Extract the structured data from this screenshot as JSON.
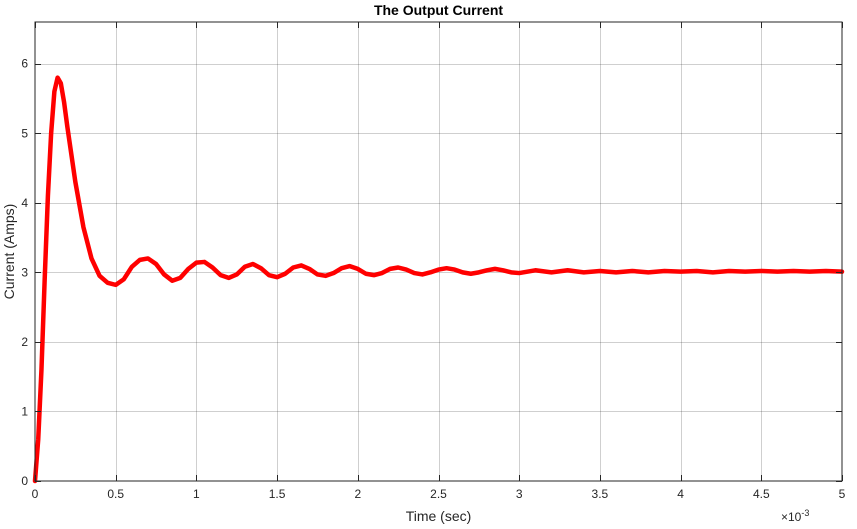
{
  "chart_data": {
    "type": "line",
    "title": "The Output Current",
    "xlabel": "Time (sec)",
    "ylabel": "Current (Amps)",
    "x_exponent_base": "×10",
    "x_exponent_power": "-3",
    "xlim": [
      0,
      5
    ],
    "ylim": [
      0,
      6.6
    ],
    "xticks": [
      0,
      0.5,
      1,
      1.5,
      2,
      2.5,
      3,
      3.5,
      4,
      4.5,
      5
    ],
    "xtick_labels": [
      "0",
      "0.5",
      "1",
      "1.5",
      "2",
      "2.5",
      "3",
      "3.5",
      "4",
      "4.5",
      "5"
    ],
    "yticks": [
      0,
      1,
      2,
      3,
      4,
      5,
      6
    ],
    "ytick_labels": [
      "0",
      "1",
      "2",
      "3",
      "4",
      "5",
      "6"
    ],
    "grid": true,
    "series": [
      {
        "color": "#ff0000",
        "x": [
          0,
          0.02,
          0.04,
          0.06,
          0.08,
          0.1,
          0.12,
          0.14,
          0.16,
          0.18,
          0.2,
          0.25,
          0.3,
          0.35,
          0.4,
          0.45,
          0.5,
          0.55,
          0.6,
          0.65,
          0.7,
          0.75,
          0.8,
          0.85,
          0.9,
          0.95,
          1.0,
          1.05,
          1.1,
          1.15,
          1.2,
          1.25,
          1.3,
          1.35,
          1.4,
          1.45,
          1.5,
          1.55,
          1.6,
          1.65,
          1.7,
          1.75,
          1.8,
          1.85,
          1.9,
          1.95,
          2.0,
          2.05,
          2.1,
          2.15,
          2.2,
          2.25,
          2.3,
          2.35,
          2.4,
          2.45,
          2.5,
          2.55,
          2.6,
          2.65,
          2.7,
          2.75,
          2.8,
          2.85,
          2.9,
          2.95,
          3.0,
          3.1,
          3.2,
          3.3,
          3.4,
          3.5,
          3.6,
          3.7,
          3.8,
          3.9,
          4.0,
          4.1,
          4.2,
          4.3,
          4.4,
          4.5,
          4.6,
          4.7,
          4.8,
          4.9,
          5.0
        ],
        "y": [
          0,
          0.6,
          1.6,
          2.9,
          4.1,
          5.0,
          5.6,
          5.8,
          5.72,
          5.45,
          5.1,
          4.3,
          3.65,
          3.2,
          2.95,
          2.85,
          2.82,
          2.9,
          3.08,
          3.18,
          3.2,
          3.12,
          2.97,
          2.88,
          2.92,
          3.05,
          3.14,
          3.15,
          3.07,
          2.96,
          2.92,
          2.97,
          3.08,
          3.12,
          3.06,
          2.96,
          2.93,
          2.98,
          3.07,
          3.1,
          3.05,
          2.97,
          2.95,
          2.99,
          3.06,
          3.09,
          3.05,
          2.98,
          2.96,
          2.99,
          3.05,
          3.07,
          3.04,
          2.99,
          2.97,
          3.0,
          3.04,
          3.06,
          3.04,
          3.0,
          2.98,
          3.0,
          3.03,
          3.05,
          3.03,
          3.0,
          2.99,
          3.03,
          3.0,
          3.03,
          3.0,
          3.02,
          3.0,
          3.02,
          3.0,
          3.02,
          3.01,
          3.02,
          3.0,
          3.02,
          3.01,
          3.02,
          3.01,
          3.02,
          3.01,
          3.02,
          3.01
        ]
      }
    ]
  }
}
